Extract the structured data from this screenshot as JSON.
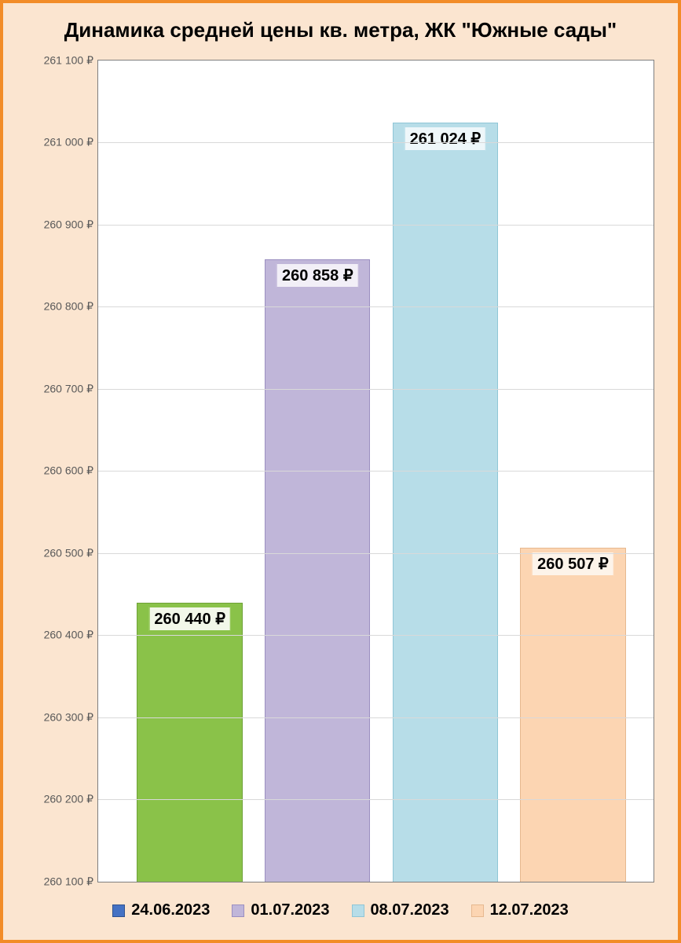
{
  "chart": {
    "type": "bar",
    "title": "Динамика средней цены кв. метра,  ЖК \"Южные сады\"",
    "title_fontsize": 26,
    "background_color": "#fbe5d0",
    "plot_background": "#ffffff",
    "outer_border_color": "#f28c28",
    "plot_border_color": "#7f7f7f",
    "grid_color": "#d9d9d9",
    "axis_label_color": "#595959",
    "axis_label_fontsize": 14,
    "bar_label_fontsize": 20,
    "legend_fontsize": 20,
    "y_axis": {
      "min": 260100,
      "max": 261100,
      "tick_step": 100,
      "ticks": [
        {
          "value": 260100,
          "label": "260 100 ₽"
        },
        {
          "value": 260200,
          "label": "260 200 ₽"
        },
        {
          "value": 260300,
          "label": "260 300 ₽"
        },
        {
          "value": 260400,
          "label": "260 400 ₽"
        },
        {
          "value": 260500,
          "label": "260 500 ₽"
        },
        {
          "value": 260600,
          "label": "260 600 ₽"
        },
        {
          "value": 260700,
          "label": "260 700 ₽"
        },
        {
          "value": 260800,
          "label": "260 800 ₽"
        },
        {
          "value": 260900,
          "label": "260 900 ₽"
        },
        {
          "value": 261000,
          "label": "261 000 ₽"
        },
        {
          "value": 261100,
          "label": "261 100 ₽"
        }
      ]
    },
    "bars": [
      {
        "value": 260440,
        "label": "260 440 ₽",
        "fill": "#8ac249",
        "border": "#6fa238",
        "label_bg": "#f2f7e9",
        "label_border": "#8ac249"
      },
      {
        "value": 260858,
        "label": "260 858 ₽",
        "fill": "#c0b6d9",
        "border": "#9b8fc0",
        "label_bg": "#f2eff7",
        "label_border": "#c0b6d9"
      },
      {
        "value": 261024,
        "label": "261 024 ₽",
        "fill": "#b7dde8",
        "border": "#8fc6d6",
        "label_bg": "#eef7fa",
        "label_border": "#b7dde8"
      },
      {
        "value": 260507,
        "label": "260 507 ₽",
        "fill": "#fcd5b2",
        "border": "#e6b88f",
        "label_bg": "#fdf4ea",
        "label_border": "#fcd5b2"
      }
    ],
    "bar_layout": {
      "left_pad_pct": 7,
      "right_pad_pct": 6,
      "gap_pct": 4,
      "bar_width_pct": 19
    },
    "legend": [
      {
        "label": "24.06.2023",
        "color": "#4472c4",
        "border": "#2f528f"
      },
      {
        "label": "01.07.2023",
        "color": "#c0b6d9",
        "border": "#9b8fc0"
      },
      {
        "label": "08.07.2023",
        "color": "#b7dde8",
        "border": "#8fc6d6"
      },
      {
        "label": "12.07.2023",
        "color": "#fcd5b2",
        "border": "#e6b88f"
      }
    ]
  }
}
